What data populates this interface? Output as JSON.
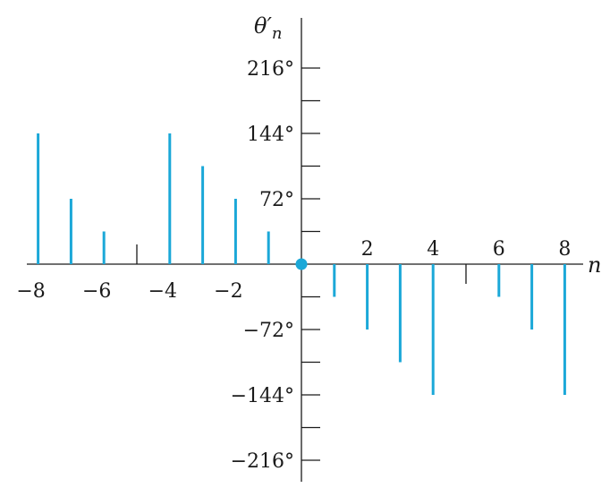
{
  "chart_data": {
    "type": "stem",
    "xlabel": "n",
    "ylabel": "θ′n",
    "ylabel_main": "θ′",
    "ylabel_sub": "n",
    "xlim": [
      -8,
      8
    ],
    "ylim": [
      -216,
      216
    ],
    "x": [
      -8,
      -7,
      -6,
      -5,
      -4,
      -3,
      -2,
      -1,
      0,
      1,
      2,
      3,
      4,
      5,
      6,
      7,
      8
    ],
    "values": [
      144,
      72,
      36,
      0,
      144,
      108,
      72,
      36,
      0,
      -36,
      -72,
      -108,
      -144,
      0,
      -36,
      -72,
      -144
    ],
    "x_tick_labels": [
      {
        "value": -8,
        "text": "−8"
      },
      {
        "value": -6,
        "text": "−6"
      },
      {
        "value": -4,
        "text": "−4"
      },
      {
        "value": -2,
        "text": "−2"
      },
      {
        "value": 2,
        "text": "2"
      },
      {
        "value": 4,
        "text": "4"
      },
      {
        "value": 6,
        "text": "6"
      },
      {
        "value": 8,
        "text": "8"
      }
    ],
    "y_ticks": [
      -216,
      -180,
      -144,
      -108,
      -72,
      -36,
      36,
      72,
      108,
      144,
      180,
      216
    ],
    "y_tick_labels": [
      {
        "value": 216,
        "text": "216°"
      },
      {
        "value": 144,
        "text": "144°"
      },
      {
        "value": 72,
        "text": "72°"
      },
      {
        "value": -72,
        "text": "−72°"
      },
      {
        "value": -144,
        "text": "−144°"
      },
      {
        "value": -216,
        "text": "−216°"
      }
    ],
    "colors": {
      "stem": "#1ba8d8",
      "axis": "#1a1a1a"
    }
  }
}
